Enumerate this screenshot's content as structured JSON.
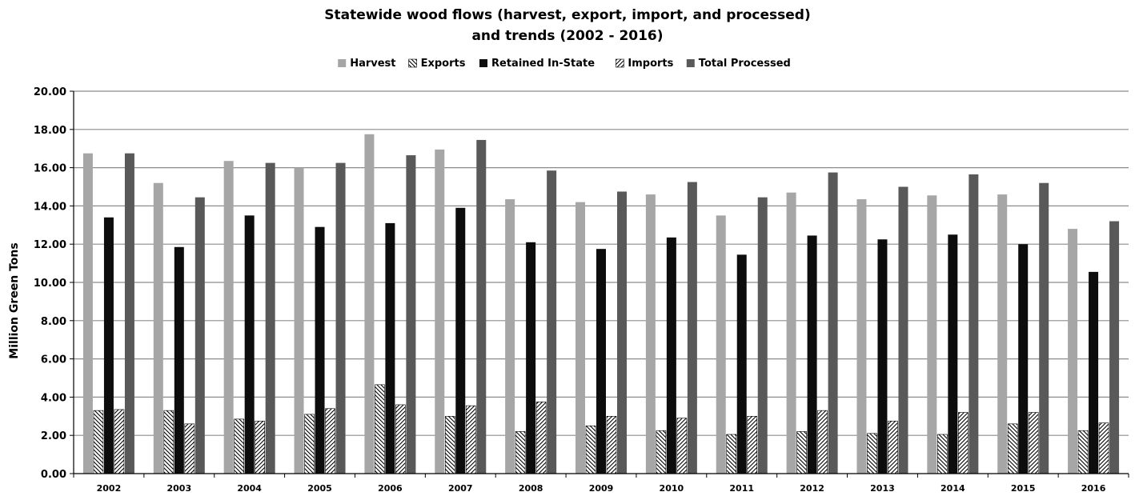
{
  "chart_data": {
    "type": "bar",
    "title_line1": "Statewide wood flows (harvest, export, import, and processed)",
    "title_line2": "and trends (2002 - 2016)",
    "ylabel": "Million Green Tons",
    "xlabel": "",
    "ylim": [
      0,
      20
    ],
    "ytick_step": 2,
    "ytick_labels": [
      "0.00",
      "2.00",
      "4.00",
      "6.00",
      "8.00",
      "10.00",
      "12.00",
      "14.00",
      "16.00",
      "18.00",
      "20.00"
    ],
    "grid": true,
    "legend_position": "top",
    "categories": [
      "2002",
      "2003",
      "2004",
      "2005",
      "2006",
      "2007",
      "2008",
      "2009",
      "2010",
      "2011",
      "2012",
      "2013",
      "2014",
      "2015",
      "2016"
    ],
    "series": [
      {
        "name": "Harvest",
        "style": "solid",
        "color": "#a6a6a6",
        "values": [
          16.75,
          15.2,
          16.35,
          16.0,
          17.75,
          16.95,
          14.35,
          14.2,
          14.6,
          13.5,
          14.7,
          14.35,
          14.55,
          14.6,
          12.8
        ]
      },
      {
        "name": "Exports",
        "style": "hatch-back",
        "color": "#000000",
        "values": [
          3.3,
          3.3,
          2.85,
          3.1,
          4.65,
          3.0,
          2.2,
          2.5,
          2.25,
          2.05,
          2.2,
          2.1,
          2.05,
          2.6,
          2.25
        ]
      },
      {
        "name": "Retained In-State",
        "style": "solid",
        "color": "#0d0d0d",
        "values": [
          13.4,
          11.85,
          13.5,
          12.9,
          13.1,
          13.9,
          12.1,
          11.75,
          12.35,
          11.45,
          12.45,
          12.25,
          12.5,
          12.0,
          10.55
        ]
      },
      {
        "name": "Imports",
        "style": "hatch-fwd",
        "color": "#000000",
        "values": [
          3.35,
          2.6,
          2.75,
          3.4,
          3.6,
          3.55,
          3.75,
          3.0,
          2.9,
          3.0,
          3.3,
          2.75,
          3.2,
          3.2,
          2.65
        ]
      },
      {
        "name": "Total Processed",
        "style": "solid",
        "color": "#595959",
        "values": [
          16.75,
          14.45,
          16.25,
          16.25,
          16.65,
          17.45,
          15.85,
          14.75,
          15.25,
          14.45,
          15.75,
          15.0,
          15.65,
          15.2,
          13.2
        ]
      }
    ]
  }
}
